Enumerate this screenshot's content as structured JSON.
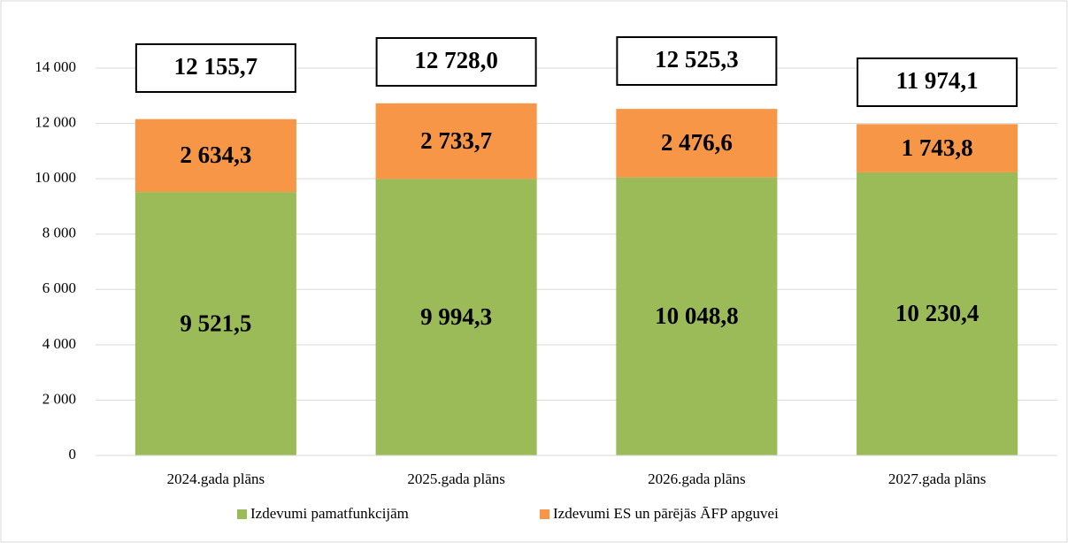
{
  "chart_data": {
    "type": "stacked_bar",
    "categories": [
      "2024.gada plāns",
      "2025.gada plāns",
      "2026.gada plāns",
      "2027.gada plāns"
    ],
    "series": [
      {
        "name": "Izdevumi pamatfunkcijām",
        "color": "#9bbb59",
        "values": [
          9521.5,
          9994.3,
          10048.8,
          10230.4
        ],
        "value_labels": [
          "9 521,5",
          "9 994,3",
          "10 048,8",
          "10 230,4"
        ]
      },
      {
        "name": "Izdevumi ES un pārējās ĀFP apguvei",
        "color": "#f79646",
        "values": [
          2634.3,
          2733.7,
          2476.6,
          1743.8
        ],
        "value_labels": [
          "2 634,3",
          "2 733,7",
          "2 476,6",
          "1 743,8"
        ]
      }
    ],
    "total_labels": [
      "12 155,7",
      "12 728,0",
      "12 525,3",
      "11 974,1"
    ],
    "ylim": [
      0,
      14000
    ],
    "yticks": [
      0,
      {
        "value": 2000,
        "label": "2 000"
      },
      {
        "value": 4000,
        "label": "4 000"
      },
      {
        "value": 6000,
        "label": "6 000"
      },
      {
        "value": 8000,
        "label": "8 000"
      },
      {
        "value": 10000,
        "label": "10 000"
      },
      {
        "value": 12000,
        "label": "12 000"
      },
      {
        "value": 14000,
        "label": "14 000"
      }
    ],
    "grid": true,
    "legend": "bottom"
  }
}
